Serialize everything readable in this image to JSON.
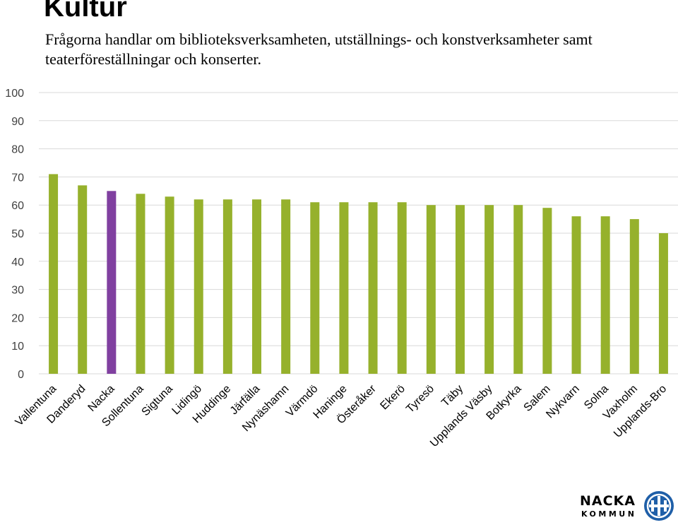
{
  "chart_data": {
    "type": "bar",
    "title": "Kultur",
    "subtitle": "Frågorna handlar om biblioteksverksamheten, utställnings- och konstverksamheter samt teaterföreställningar och konserter.",
    "categories": [
      "Vallentuna",
      "Danderyd",
      "Nacka",
      "Sollentuna",
      "Sigtuna",
      "Lidingö",
      "Huddinge",
      "Järfälla",
      "Nynäshamn",
      "Värmdö",
      "Haninge",
      "Österåker",
      "Ekerö",
      "Tyresö",
      "Täby",
      "Upplands Väsby",
      "Botkyrka",
      "Salem",
      "Nykvarn",
      "Solna",
      "Vaxholm",
      "Upplands-Bro"
    ],
    "values": [
      71,
      67,
      65,
      64,
      63,
      62,
      62,
      62,
      62,
      61,
      61,
      61,
      61,
      60,
      60,
      60,
      60,
      59,
      56,
      56,
      55,
      50
    ],
    "highlight": "Nacka",
    "xlabel": "",
    "ylabel": "",
    "ylim": [
      0,
      100
    ],
    "yticks": [
      0,
      10,
      20,
      30,
      40,
      50,
      60,
      70,
      80,
      90,
      100
    ],
    "grid": true,
    "colors": {
      "bar": "#96b12c",
      "highlight": "#8040a0",
      "grid": "#d9d9d9"
    }
  },
  "logo": {
    "line1": "NACKA",
    "line2": "KOMMUN",
    "icon": "nacka-emblem-icon",
    "color": "#1f5fa8",
    "text_color": "#1a1a1a"
  }
}
